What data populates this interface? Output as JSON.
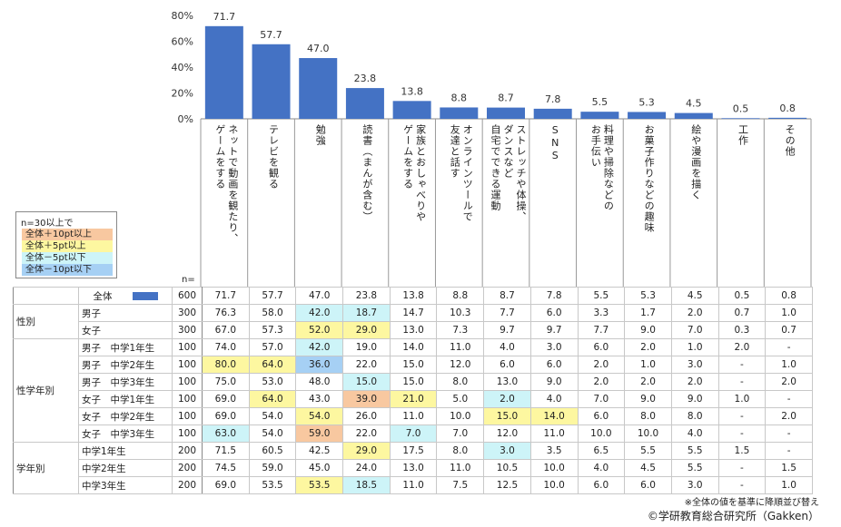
{
  "chart_data": {
    "type": "bar",
    "ylim": [
      0,
      80
    ],
    "yticks": [
      "0%",
      "20%",
      "40%",
      "60%",
      "80%"
    ],
    "bar_color": "#4472c4",
    "categories": [
      "ネットで動画を観たり、ゲームをする",
      "テレビを観る",
      "勉強",
      "読書（まんが含む）",
      "家族とおしゃべりやゲームをする",
      "オンラインツールで友達と話す",
      "ストレッチや体操、ダンスなど自宅でできる運動",
      "SNS",
      "料理や掃除などのお手伝い",
      "お菓子作りなどの趣味",
      "絵や漫画を描く",
      "工作",
      "その他"
    ],
    "category_columns": [
      [
        "ネットで動画を観たり、",
        "ゲームをする"
      ],
      [
        "テレビを観る"
      ],
      [
        "勉強"
      ],
      [
        "読書（まんが含む）"
      ],
      [
        "家族とおしゃべりや",
        "ゲームをする"
      ],
      [
        "オンラインツールで",
        "友達と話す"
      ],
      [
        "ストレッチや体操、",
        "ダンスなど",
        "自宅でできる運動"
      ],
      [
        "SNS"
      ],
      [
        "料理や掃除などの",
        "お手伝い"
      ],
      [
        "お菓子作りなどの趣味"
      ],
      [
        "絵や漫画を描く"
      ],
      [
        "工作"
      ],
      [
        "その他"
      ]
    ],
    "values": [
      71.7,
      57.7,
      47.0,
      23.8,
      13.8,
      8.8,
      8.7,
      7.8,
      5.5,
      5.3,
      4.5,
      0.5,
      0.8
    ],
    "value_labels": [
      "71.7",
      "57.7",
      "47.0",
      "23.8",
      "13.8",
      "8.8",
      "8.7",
      "7.8",
      "5.5",
      "5.3",
      "4.5",
      "0.5",
      "0.8"
    ]
  },
  "legend": {
    "title": "n=30以上で",
    "items": [
      {
        "label": "全体＋10pt以上",
        "color": "#f8c8a0"
      },
      {
        "label": "全体＋5pt以上",
        "color": "#fdf7a0"
      },
      {
        "label": "全体－5pt以下",
        "color": "#cdf4f8"
      },
      {
        "label": "全体－10pt以下",
        "color": "#a6d0f4"
      }
    ]
  },
  "n_label": "n=",
  "highlight_colors": {
    "p10": "#f8c8a0",
    "p5": "#fdf7a0",
    "m5": "#cdf4f8",
    "m10": "#a6d0f4"
  },
  "table": {
    "total": {
      "label": "全体",
      "n": "600",
      "values": [
        "71.7",
        "57.7",
        "47.0",
        "23.8",
        "13.8",
        "8.8",
        "8.7",
        "7.8",
        "5.5",
        "5.3",
        "4.5",
        "0.5",
        "0.8"
      ]
    },
    "groups": [
      {
        "label": "性別",
        "rows": [
          {
            "label": "男子",
            "n": "300",
            "values": [
              "76.3",
              "58.0",
              "42.0",
              "18.7",
              "14.7",
              "10.3",
              "7.7",
              "6.0",
              "3.3",
              "1.7",
              "2.0",
              "0.7",
              "1.0"
            ],
            "hl": [
              "",
              "",
              "m5",
              "m5",
              "",
              "",
              "",
              "",
              "",
              "",
              "",
              "",
              ""
            ]
          },
          {
            "label": "女子",
            "n": "300",
            "values": [
              "67.0",
              "57.3",
              "52.0",
              "29.0",
              "13.0",
              "7.3",
              "9.7",
              "9.7",
              "7.7",
              "9.0",
              "7.0",
              "0.3",
              "0.7"
            ],
            "hl": [
              "",
              "",
              "p5",
              "p5",
              "",
              "",
              "",
              "",
              "",
              "",
              "",
              "",
              ""
            ]
          }
        ]
      },
      {
        "label": "性学年別",
        "rows": [
          {
            "label": "男子　中学1年生",
            "n": "100",
            "values": [
              "74.0",
              "57.0",
              "42.0",
              "19.0",
              "14.0",
              "11.0",
              "4.0",
              "3.0",
              "6.0",
              "2.0",
              "1.0",
              "2.0",
              "-"
            ],
            "hl": [
              "",
              "",
              "m5",
              "",
              "",
              "",
              "",
              "",
              "",
              "",
              "",
              "",
              ""
            ]
          },
          {
            "label": "男子　中学2年生",
            "n": "100",
            "values": [
              "80.0",
              "64.0",
              "36.0",
              "22.0",
              "15.0",
              "12.0",
              "6.0",
              "6.0",
              "2.0",
              "1.0",
              "3.0",
              "-",
              "1.0"
            ],
            "hl": [
              "p5",
              "p5",
              "m10",
              "",
              "",
              "",
              "",
              "",
              "",
              "",
              "",
              "",
              ""
            ]
          },
          {
            "label": "男子　中学3年生",
            "n": "100",
            "values": [
              "75.0",
              "53.0",
              "48.0",
              "15.0",
              "15.0",
              "8.0",
              "13.0",
              "9.0",
              "2.0",
              "2.0",
              "2.0",
              "-",
              "2.0"
            ],
            "hl": [
              "",
              "",
              "",
              "m5",
              "",
              "",
              "",
              "",
              "",
              "",
              "",
              "",
              ""
            ]
          },
          {
            "label": "女子　中学1年生",
            "n": "100",
            "values": [
              "69.0",
              "64.0",
              "43.0",
              "39.0",
              "21.0",
              "5.0",
              "2.0",
              "4.0",
              "7.0",
              "9.0",
              "9.0",
              "1.0",
              "-"
            ],
            "hl": [
              "",
              "p5",
              "",
              "p10",
              "p5",
              "",
              "m5",
              "",
              "",
              "",
              "",
              "",
              ""
            ]
          },
          {
            "label": "女子　中学2年生",
            "n": "100",
            "values": [
              "69.0",
              "54.0",
              "54.0",
              "26.0",
              "11.0",
              "10.0",
              "15.0",
              "14.0",
              "6.0",
              "8.0",
              "8.0",
              "-",
              "2.0"
            ],
            "hl": [
              "",
              "",
              "p5",
              "",
              "",
              "",
              "p5",
              "p5",
              "",
              "",
              "",
              "",
              ""
            ]
          },
          {
            "label": "女子　中学3年生",
            "n": "100",
            "values": [
              "63.0",
              "54.0",
              "59.0",
              "22.0",
              "7.0",
              "7.0",
              "12.0",
              "11.0",
              "10.0",
              "10.0",
              "4.0",
              "-",
              "-"
            ],
            "hl": [
              "m5",
              "",
              "p10",
              "",
              "m5",
              "",
              "",
              "",
              "",
              "",
              "",
              "",
              ""
            ]
          }
        ]
      },
      {
        "label": "学年別",
        "rows": [
          {
            "label": "中学1年生",
            "n": "200",
            "values": [
              "71.5",
              "60.5",
              "42.5",
              "29.0",
              "17.5",
              "8.0",
              "3.0",
              "3.5",
              "6.5",
              "5.5",
              "5.5",
              "1.5",
              "-"
            ],
            "hl": [
              "",
              "",
              "",
              "p5",
              "",
              "",
              "m5",
              "",
              "",
              "",
              "",
              "",
              ""
            ]
          },
          {
            "label": "中学2年生",
            "n": "200",
            "values": [
              "74.5",
              "59.0",
              "45.0",
              "24.0",
              "13.0",
              "11.0",
              "10.5",
              "10.0",
              "4.0",
              "4.5",
              "5.5",
              "-",
              "1.5"
            ],
            "hl": [
              "",
              "",
              "",
              "",
              "",
              "",
              "",
              "",
              "",
              "",
              "",
              "",
              ""
            ]
          },
          {
            "label": "中学3年生",
            "n": "200",
            "values": [
              "69.0",
              "53.5",
              "53.5",
              "18.5",
              "11.0",
              "7.5",
              "12.5",
              "10.0",
              "6.0",
              "6.0",
              "3.0",
              "-",
              "1.0"
            ],
            "hl": [
              "",
              "",
              "p5",
              "m5",
              "",
              "",
              "",
              "",
              "",
              "",
              "",
              "",
              ""
            ]
          }
        ]
      }
    ]
  },
  "footnote": "※全体の値を基準に降順並び替え",
  "copyright": "©学研教育総合研究所（Gakken）"
}
